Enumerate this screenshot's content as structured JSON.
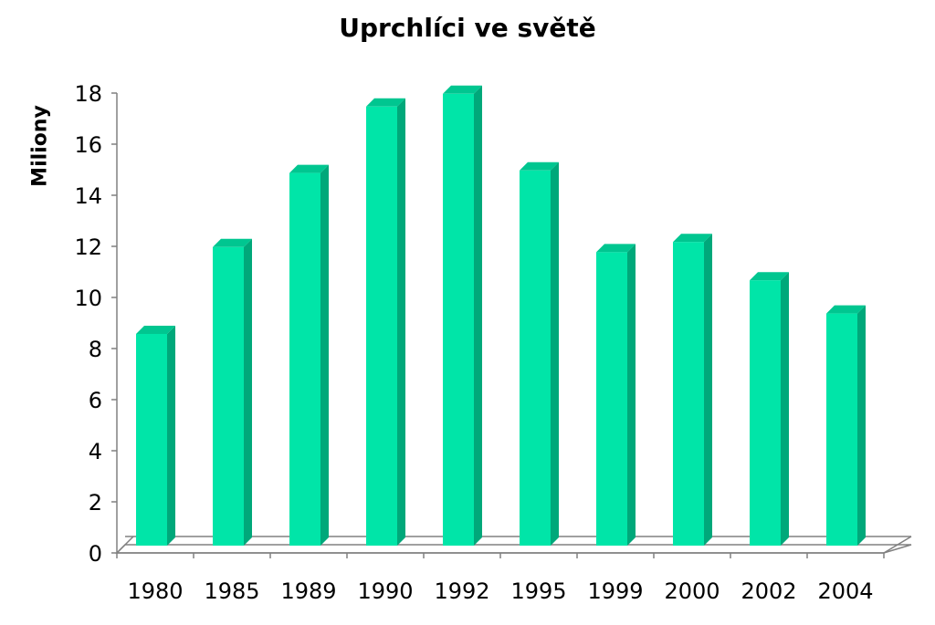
{
  "chart_data": {
    "type": "bar",
    "title": "Uprchlíci ve světě",
    "xlabel": "",
    "ylabel": "Miliony",
    "categories": [
      "1980",
      "1985",
      "1989",
      "1990",
      "1992",
      "1995",
      "1999",
      "2000",
      "2002",
      "2004"
    ],
    "values": [
      8.5,
      11.9,
      14.8,
      17.4,
      17.9,
      14.9,
      11.7,
      12.1,
      10.6,
      9.3
    ],
    "ylim": [
      0,
      18
    ],
    "yticks": [
      "0",
      "2",
      "4",
      "6",
      "8",
      "10",
      "12",
      "14",
      "16",
      "18"
    ],
    "grid": false,
    "legend": "none",
    "style": "3d-column",
    "colors": {
      "bar_front": "#00E5A8",
      "bar_side": "#00A87A",
      "bar_top": "#00C690",
      "axis": "#808080"
    }
  }
}
